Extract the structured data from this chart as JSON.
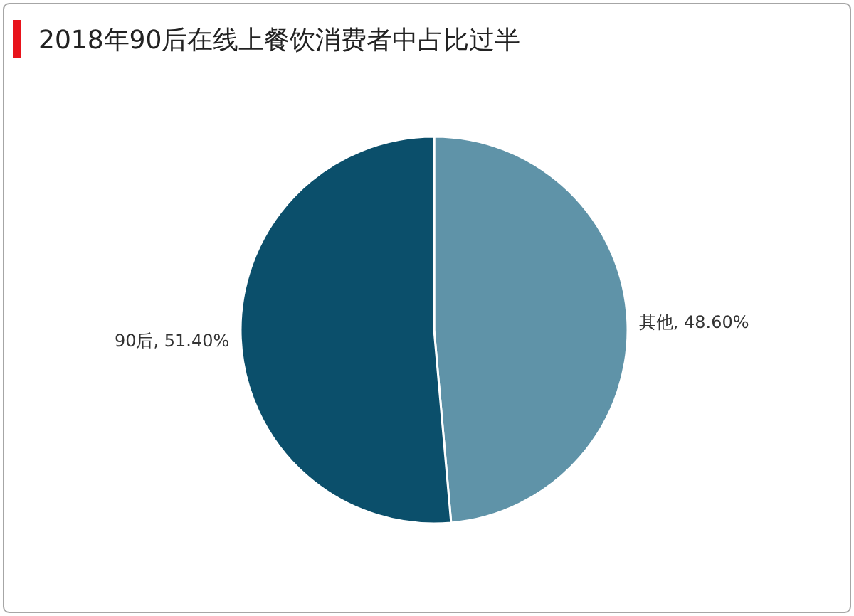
{
  "chart_data": {
    "type": "pie",
    "title": "2018年90后在线上餐饮消费者中占比过半",
    "categories": [
      "其他",
      "90后"
    ],
    "values": [
      48.6,
      51.4
    ],
    "colors": [
      "#5f93a8",
      "#0b4f6b"
    ],
    "value_labels": [
      ", 48.60%",
      ", 51.40%"
    ],
    "legend": false
  }
}
